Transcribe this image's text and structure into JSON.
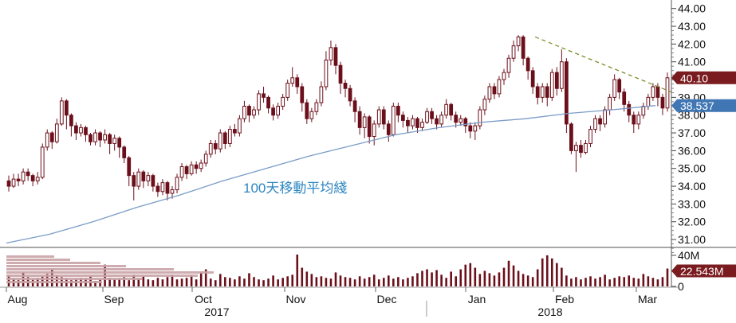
{
  "chart_data": {
    "type": "candlestick",
    "price_axis": {
      "ticks": [
        "44.00",
        "43.00",
        "42.00",
        "41.00",
        "40.00",
        "39.00",
        "38.00",
        "37.00",
        "36.00",
        "35.00",
        "34.00",
        "33.00",
        "32.00",
        "31.00"
      ],
      "ylim": [
        30.6,
        44.3
      ]
    },
    "volume_axis": {
      "ticks": [
        "40M",
        "20M",
        "0"
      ],
      "ylim": [
        0,
        43
      ]
    },
    "x_axis": {
      "months": [
        "Aug",
        "Sep",
        "Oct",
        "Nov",
        "Dec",
        "Jan",
        "Feb",
        "Mar"
      ],
      "years": [
        "2017",
        "2018"
      ]
    },
    "last_price_label": "40.10",
    "last_price_value": 40.1,
    "ma_label": "38.537",
    "ma_value": 38.537,
    "volume_label": "22.543M",
    "volume_value": 22.543,
    "annotation": "100天移動平均綫",
    "colors": {
      "candle": "#6b0f1a",
      "ma_line": "#7a9cc6",
      "trendline": "#7a8f2a",
      "price_badge": "#7a1b1f",
      "ma_badge": "#3f76b3",
      "volume_badge": "#7a1b1f",
      "annotation": "#2e86c1"
    },
    "trendline": {
      "from": [
        "mid-Jan",
        42.4
      ],
      "to": [
        "Mar",
        39.3
      ]
    },
    "series": [
      {
        "name": "moving-average",
        "values": [
          30.8,
          31.3,
          32.0,
          32.8,
          33.5,
          34.3,
          35.0,
          35.7,
          36.3,
          36.9,
          37.3,
          37.6,
          37.8,
          38.1,
          38.3,
          38.537
        ]
      }
    ],
    "candles": [
      [
        34.3,
        34.0,
        34.6,
        33.7
      ],
      [
        34.0,
        34.4,
        34.7,
        33.9
      ],
      [
        34.4,
        34.3,
        34.7,
        34.0
      ],
      [
        34.3,
        34.8,
        35.0,
        34.1
      ],
      [
        34.8,
        34.6,
        35.0,
        34.3
      ],
      [
        34.6,
        34.3,
        34.7,
        34.0
      ],
      [
        34.3,
        34.5,
        34.8,
        34.1
      ],
      [
        34.5,
        36.2,
        36.4,
        34.4
      ],
      [
        36.2,
        37.0,
        37.2,
        36.0
      ],
      [
        37.0,
        36.5,
        37.1,
        36.1
      ],
      [
        36.5,
        37.5,
        37.8,
        36.4
      ],
      [
        37.5,
        38.8,
        39.0,
        37.4
      ],
      [
        38.8,
        38.0,
        38.9,
        37.2
      ],
      [
        38.0,
        37.4,
        38.1,
        36.8
      ],
      [
        37.4,
        37.0,
        37.6,
        36.6
      ],
      [
        37.0,
        37.3,
        37.5,
        36.8
      ],
      [
        37.3,
        36.9,
        37.4,
        36.5
      ],
      [
        36.9,
        36.5,
        37.0,
        36.3
      ],
      [
        36.5,
        37.0,
        37.2,
        36.3
      ],
      [
        37.0,
        36.6,
        37.1,
        36.2
      ],
      [
        36.6,
        36.9,
        37.2,
        36.4
      ],
      [
        36.9,
        36.4,
        37.0,
        35.8
      ],
      [
        36.4,
        36.7,
        36.9,
        36.0
      ],
      [
        36.7,
        36.2,
        36.8,
        35.6
      ],
      [
        36.2,
        35.6,
        36.3,
        35.3
      ],
      [
        35.6,
        34.6,
        35.7,
        34.0
      ],
      [
        34.6,
        34.0,
        34.8,
        33.2
      ],
      [
        34.0,
        34.8,
        35.0,
        33.8
      ],
      [
        34.8,
        34.3,
        34.9,
        33.9
      ],
      [
        34.3,
        34.6,
        34.8,
        34.0
      ],
      [
        34.6,
        34.0,
        34.7,
        33.7
      ],
      [
        34.0,
        33.7,
        34.2,
        33.4
      ],
      [
        33.7,
        34.2,
        34.4,
        33.5
      ],
      [
        34.2,
        33.6,
        34.3,
        33.2
      ],
      [
        33.6,
        33.8,
        34.0,
        33.3
      ],
      [
        33.8,
        34.5,
        34.7,
        33.6
      ],
      [
        34.5,
        35.1,
        35.3,
        34.3
      ],
      [
        35.1,
        34.7,
        35.2,
        34.4
      ],
      [
        34.7,
        35.2,
        35.4,
        34.6
      ],
      [
        35.2,
        35.0,
        35.4,
        34.7
      ],
      [
        35.0,
        35.3,
        35.5,
        34.8
      ],
      [
        35.3,
        35.8,
        36.0,
        35.1
      ],
      [
        35.8,
        36.4,
        36.6,
        35.6
      ],
      [
        36.4,
        36.1,
        36.6,
        35.8
      ],
      [
        36.1,
        37.0,
        37.2,
        35.9
      ],
      [
        37.0,
        36.4,
        37.1,
        36.1
      ],
      [
        36.4,
        37.2,
        37.4,
        36.2
      ],
      [
        37.2,
        37.0,
        37.5,
        36.8
      ],
      [
        37.0,
        37.8,
        38.0,
        36.8
      ],
      [
        37.8,
        38.5,
        38.8,
        37.6
      ],
      [
        38.5,
        38.0,
        38.6,
        37.6
      ],
      [
        38.0,
        38.3,
        38.5,
        37.8
      ],
      [
        38.3,
        39.2,
        39.4,
        38.0
      ],
      [
        39.2,
        39.0,
        39.6,
        38.7
      ],
      [
        39.0,
        38.4,
        39.1,
        38.1
      ],
      [
        38.4,
        38.0,
        38.6,
        37.7
      ],
      [
        38.0,
        38.5,
        38.7,
        37.8
      ],
      [
        38.5,
        39.0,
        39.2,
        38.3
      ],
      [
        39.0,
        39.8,
        40.0,
        38.8
      ],
      [
        39.8,
        40.1,
        40.7,
        39.6
      ],
      [
        40.1,
        39.6,
        40.3,
        39.2
      ],
      [
        39.6,
        38.7,
        39.8,
        38.2
      ],
      [
        38.7,
        37.8,
        38.9,
        37.5
      ],
      [
        37.8,
        38.2,
        38.4,
        37.6
      ],
      [
        38.2,
        38.7,
        38.9,
        38.0
      ],
      [
        38.7,
        39.6,
        39.9,
        38.5
      ],
      [
        39.6,
        41.1,
        41.6,
        39.4
      ],
      [
        41.1,
        41.8,
        42.2,
        40.8
      ],
      [
        41.8,
        40.8,
        42.0,
        40.3
      ],
      [
        40.8,
        39.8,
        41.0,
        39.2
      ],
      [
        39.8,
        39.5,
        40.0,
        39.0
      ],
      [
        39.5,
        38.8,
        39.7,
        38.5
      ],
      [
        38.8,
        38.2,
        39.0,
        37.6
      ],
      [
        38.2,
        37.3,
        38.5,
        36.9
      ],
      [
        37.3,
        37.9,
        38.1,
        36.7
      ],
      [
        37.9,
        36.8,
        38.0,
        36.4
      ],
      [
        36.8,
        37.5,
        37.7,
        36.3
      ],
      [
        37.5,
        38.3,
        38.5,
        37.3
      ],
      [
        38.3,
        37.5,
        38.5,
        37.2
      ],
      [
        37.5,
        36.9,
        37.7,
        36.5
      ],
      [
        36.9,
        38.5,
        38.7,
        36.8
      ],
      [
        38.5,
        38.0,
        38.7,
        37.6
      ],
      [
        38.0,
        37.7,
        38.2,
        37.3
      ],
      [
        37.7,
        37.4,
        37.9,
        37.0
      ],
      [
        37.4,
        37.8,
        38.0,
        37.2
      ],
      [
        37.8,
        37.3,
        37.9,
        37.0
      ],
      [
        37.3,
        37.6,
        37.8,
        37.1
      ],
      [
        37.6,
        38.2,
        38.4,
        37.5
      ],
      [
        38.2,
        37.8,
        38.4,
        37.5
      ],
      [
        37.8,
        37.5,
        38.0,
        37.2
      ],
      [
        37.5,
        38.0,
        38.2,
        37.3
      ],
      [
        38.0,
        38.6,
        38.9,
        37.8
      ],
      [
        38.6,
        38.0,
        38.7,
        37.7
      ],
      [
        38.0,
        37.6,
        38.2,
        37.3
      ],
      [
        37.6,
        37.8,
        38.0,
        37.4
      ],
      [
        37.8,
        37.4,
        37.9,
        37.0
      ],
      [
        37.4,
        37.1,
        37.6,
        36.7
      ],
      [
        37.1,
        37.4,
        37.6,
        36.6
      ],
      [
        37.4,
        38.3,
        38.5,
        37.2
      ],
      [
        38.3,
        38.9,
        39.1,
        38.0
      ],
      [
        38.9,
        39.6,
        39.8,
        38.7
      ],
      [
        39.6,
        39.2,
        39.8,
        38.9
      ],
      [
        39.2,
        40.0,
        40.2,
        39.0
      ],
      [
        40.0,
        40.4,
        40.6,
        39.7
      ],
      [
        40.4,
        41.2,
        41.4,
        40.1
      ],
      [
        41.2,
        41.9,
        42.2,
        41.0
      ],
      [
        41.9,
        42.4,
        42.5,
        41.6
      ],
      [
        42.4,
        41.2,
        42.5,
        40.8
      ],
      [
        41.2,
        40.5,
        41.3,
        40.0
      ],
      [
        40.5,
        39.6,
        40.7,
        39.2
      ],
      [
        39.6,
        39.0,
        39.8,
        38.6
      ],
      [
        39.0,
        39.6,
        39.8,
        38.7
      ],
      [
        39.6,
        39.0,
        39.8,
        38.5
      ],
      [
        39.0,
        40.4,
        40.6,
        38.8
      ],
      [
        40.4,
        39.5,
        40.7,
        39.1
      ],
      [
        39.5,
        41.0,
        41.7,
        39.3
      ],
      [
        41.0,
        37.5,
        41.2,
        37.0
      ],
      [
        37.5,
        36.0,
        37.6,
        35.8
      ],
      [
        36.0,
        36.3,
        36.5,
        34.8
      ],
      [
        36.3,
        35.9,
        36.6,
        35.6
      ],
      [
        35.9,
        36.4,
        36.6,
        35.8
      ],
      [
        36.4,
        37.2,
        37.4,
        36.2
      ],
      [
        37.2,
        37.8,
        38.0,
        37.0
      ],
      [
        37.8,
        37.5,
        38.0,
        37.1
      ],
      [
        37.5,
        38.3,
        38.5,
        37.3
      ],
      [
        38.3,
        39.0,
        39.2,
        38.0
      ],
      [
        39.0,
        40.0,
        40.3,
        38.8
      ],
      [
        40.0,
        39.3,
        40.1,
        38.9
      ],
      [
        39.3,
        38.6,
        39.5,
        38.2
      ],
      [
        38.6,
        38.0,
        38.8,
        37.6
      ],
      [
        38.0,
        37.5,
        38.2,
        37.0
      ],
      [
        37.5,
        38.0,
        38.2,
        37.2
      ],
      [
        38.0,
        38.5,
        38.7,
        37.8
      ],
      [
        38.5,
        39.0,
        39.2,
        38.3
      ],
      [
        39.0,
        39.6,
        39.8,
        38.8
      ],
      [
        39.6,
        39.0,
        39.8,
        38.5
      ],
      [
        39.0,
        38.4,
        39.2,
        38.0
      ],
      [
        38.4,
        40.1,
        40.4,
        38.2
      ]
    ],
    "volumes": [
      14,
      10,
      8,
      18,
      12,
      9,
      11,
      13,
      16,
      22,
      14,
      12,
      10,
      8,
      9,
      11,
      10,
      13,
      7,
      9,
      28,
      11,
      9,
      10,
      12,
      8,
      15,
      10,
      13,
      9,
      8,
      11,
      9,
      12,
      15,
      9,
      10,
      11,
      14,
      9,
      18,
      22,
      10,
      8,
      16,
      12,
      11,
      9,
      13,
      10,
      17,
      12,
      9,
      8,
      10,
      14,
      9,
      11,
      13,
      15,
      41,
      24,
      19,
      16,
      12,
      13,
      11,
      10,
      18,
      14,
      12,
      11,
      9,
      13,
      10,
      12,
      15,
      9,
      11,
      14,
      10,
      12,
      9,
      11,
      13,
      17,
      20,
      22,
      18,
      21,
      15,
      11,
      19,
      13,
      22,
      28,
      30,
      24,
      16,
      20,
      17,
      14,
      18,
      24,
      33,
      27,
      20,
      16,
      14,
      12,
      22,
      36,
      40,
      36,
      30,
      24,
      14,
      10,
      12,
      9,
      11,
      13,
      10,
      12,
      15,
      9,
      11,
      13,
      12,
      14,
      11,
      10,
      16,
      13,
      11,
      9,
      12,
      23
    ]
  }
}
